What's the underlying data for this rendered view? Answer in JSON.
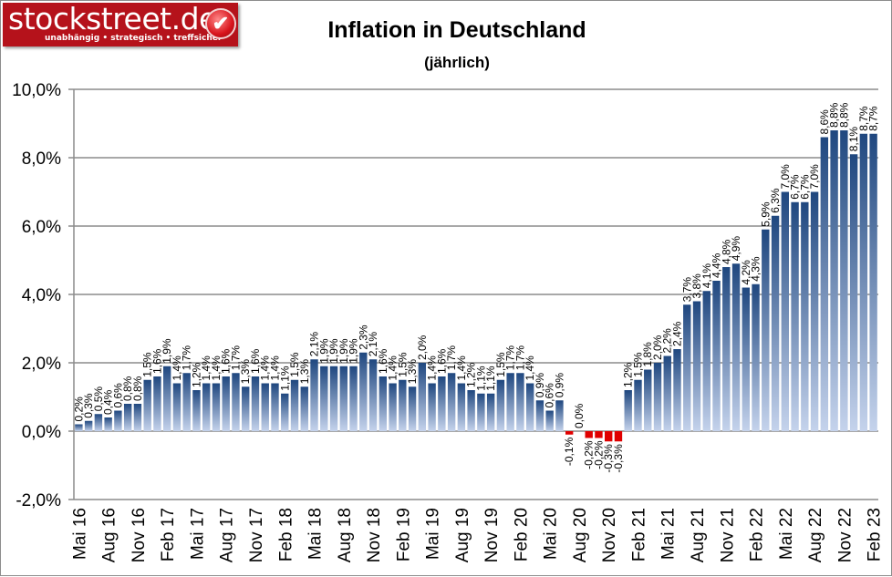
{
  "logo": {
    "brand": "stockstreet.de",
    "tagline": "unabhängig • strategisch • treffsicher",
    "color": "#b5121b"
  },
  "chart_data": {
    "type": "bar",
    "title": "Inflation in Deutschland",
    "subtitle": "(jährlich)",
    "xlabel": "",
    "ylabel": "",
    "ylim": [
      -2,
      10
    ],
    "yticks": [
      "-2,0%",
      "0,0%",
      "2,0%",
      "4,0%",
      "6,0%",
      "8,0%",
      "10,0%"
    ],
    "ytick_values": [
      -2,
      0,
      2,
      4,
      6,
      8,
      10
    ],
    "grid": true,
    "legend": "none",
    "colors": {
      "positive_top": "#1f477f",
      "positive_bottom": "#c5d3ec",
      "negative": "#e00000"
    },
    "categories": [
      "Mai 16",
      "Jun 16",
      "Jul 16",
      "Aug 16",
      "Sep 16",
      "Okt 16",
      "Nov 16",
      "Dez 16",
      "Jan 17",
      "Feb 17",
      "Mär 17",
      "Apr 17",
      "Mai 17",
      "Jun 17",
      "Jul 17",
      "Aug 17",
      "Sep 17",
      "Okt 17",
      "Nov 17",
      "Dez 17",
      "Jan 18",
      "Feb 18",
      "Mär 18",
      "Apr 18",
      "Mai 18",
      "Jun 18",
      "Jul 18",
      "Aug 18",
      "Sep 18",
      "Okt 18",
      "Nov 18",
      "Dez 18",
      "Jan 19",
      "Feb 19",
      "Mär 19",
      "Apr 19",
      "Mai 19",
      "Jun 19",
      "Jul 19",
      "Aug 19",
      "Sep 19",
      "Okt 19",
      "Nov 19",
      "Dez 19",
      "Jan 20",
      "Feb 20",
      "Mär 20",
      "Apr 20",
      "Mai 20",
      "Jun 20",
      "Jul 20",
      "Aug 20",
      "Sep 20",
      "Okt 20",
      "Nov 20",
      "Dez 20",
      "Jan 21",
      "Feb 21",
      "Mär 21",
      "Apr 21",
      "Mai 21",
      "Jun 21",
      "Jul 21",
      "Aug 21",
      "Sep 21",
      "Okt 21",
      "Nov 21",
      "Dez 21",
      "Jan 22",
      "Feb 22",
      "Mär 22",
      "Apr 22",
      "Mai 22",
      "Jun 22",
      "Jul 22",
      "Aug 22",
      "Sep 22",
      "Okt 22",
      "Nov 22",
      "Dez 22",
      "Jan 23",
      "Feb 23"
    ],
    "xtick_labels": [
      "Mai 16",
      "Aug 16",
      "Nov 16",
      "Feb 17",
      "Mai 17",
      "Aug 17",
      "Nov 17",
      "Feb 18",
      "Mai 18",
      "Aug 18",
      "Nov 18",
      "Feb 19",
      "Mai 19",
      "Aug 19",
      "Nov 19",
      "Feb 20",
      "Mai 20",
      "Aug 20",
      "Nov 20",
      "Feb 21",
      "Mai 21",
      "Aug 21",
      "Nov 21",
      "Feb 22",
      "Mai 22",
      "Aug 22",
      "Nov 22",
      "Feb 23"
    ],
    "values": [
      0.2,
      0.3,
      0.5,
      0.4,
      0.6,
      0.8,
      0.8,
      1.5,
      1.6,
      1.9,
      1.4,
      1.7,
      1.2,
      1.4,
      1.4,
      1.6,
      1.7,
      1.3,
      1.6,
      1.4,
      1.4,
      1.1,
      1.5,
      1.3,
      2.1,
      1.9,
      1.9,
      1.9,
      1.9,
      2.3,
      2.1,
      1.6,
      1.4,
      1.5,
      1.3,
      2.0,
      1.4,
      1.6,
      1.7,
      1.4,
      1.2,
      1.1,
      1.1,
      1.5,
      1.7,
      1.7,
      1.4,
      0.9,
      0.6,
      0.9,
      -0.1,
      0.0,
      -0.2,
      -0.2,
      -0.3,
      -0.3,
      1.2,
      1.5,
      1.8,
      2.0,
      2.2,
      2.4,
      3.7,
      3.8,
      4.1,
      4.4,
      4.8,
      4.9,
      4.2,
      4.3,
      5.9,
      6.3,
      7.0,
      6.7,
      6.7,
      7.0,
      8.6,
      8.8,
      8.8,
      8.1,
      8.7,
      8.7
    ]
  }
}
